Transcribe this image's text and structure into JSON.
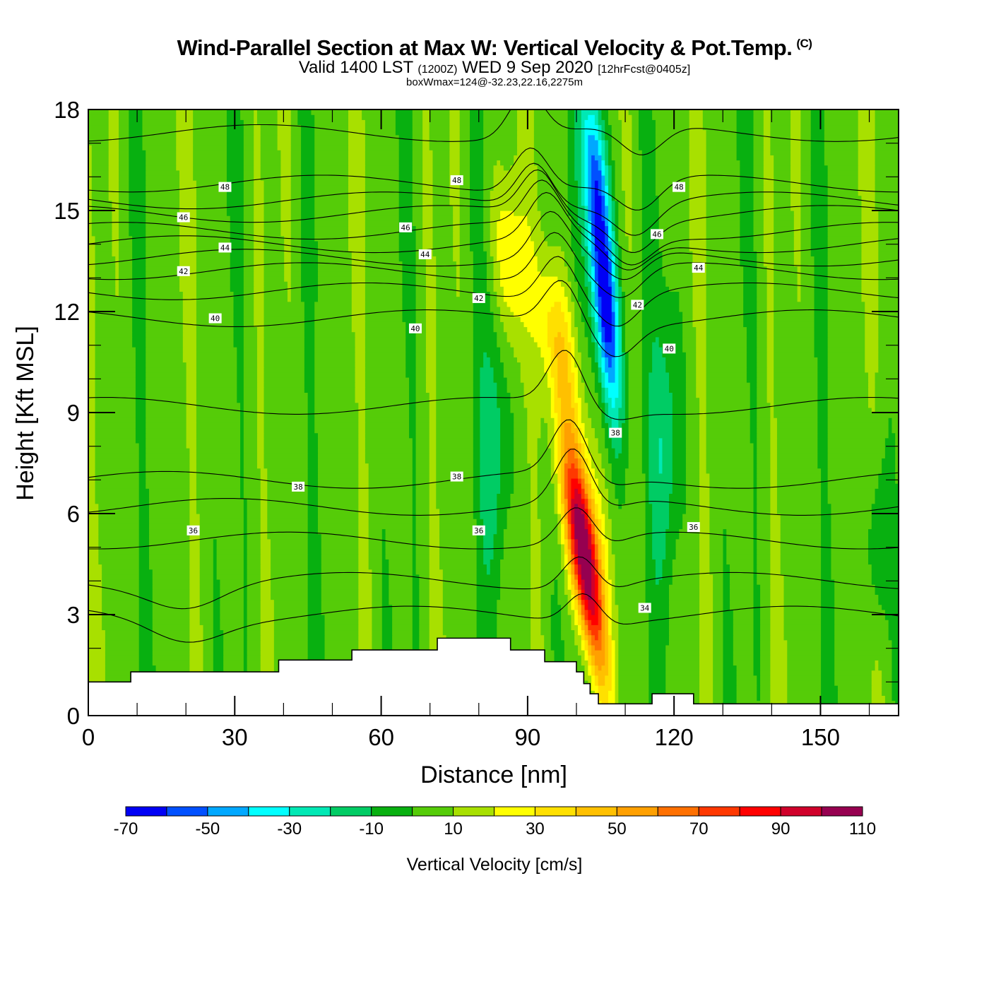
{
  "header": {
    "title": "Wind-Parallel Section at Max W: Vertical Velocity & Pot.Temp.",
    "copyright": "(C)",
    "valid_prefix": "Valid 1400 LST",
    "valid_utc": "(1200Z)",
    "valid_date": "WED 9 Sep 2020",
    "forecast": "[12hrFcst@0405z]",
    "box_info": "boxWmax=124@-32.23,22.16,2275m"
  },
  "chart_data": {
    "type": "heatmap",
    "title": "Wind-Parallel Section at Max W: Vertical Velocity & Pot.Temp.",
    "xlabel": "Distance [nm]",
    "ylabel": "Height [Kft MSL]",
    "xlim": [
      0,
      166
    ],
    "ylim": [
      0,
      18
    ],
    "xticks": [
      0,
      30,
      60,
      90,
      120,
      150
    ],
    "xminor_step": 10,
    "yticks": [
      0,
      3,
      6,
      9,
      12,
      15,
      18
    ],
    "yminor_step": 1,
    "colorbar": {
      "label": "Vertical Velocity [cm/s]",
      "levels": [
        -70,
        -60,
        -50,
        -40,
        -30,
        -20,
        -10,
        0,
        10,
        20,
        30,
        40,
        50,
        60,
        70,
        80,
        90,
        100,
        110
      ],
      "tick_labels": [
        "-70",
        "-50",
        "-30",
        "-10",
        "10",
        "30",
        "50",
        "70",
        "90",
        "110"
      ],
      "colors": [
        "#0000f5",
        "#0050ff",
        "#00a8ff",
        "#00ffff",
        "#00e8b4",
        "#00cc64",
        "#08b010",
        "#55cc08",
        "#a8e000",
        "#ffff00",
        "#ffe000",
        "#ffc000",
        "#ffa000",
        "#ff7000",
        "#ff3800",
        "#ff0000",
        "#d0002a",
        "#960050"
      ]
    },
    "background_level_cm_s": 5,
    "w_features": [
      {
        "name": "main-updraft",
        "max_cm_s": 124,
        "x_center_nm": 102.5,
        "z_center_kft": 5,
        "note": "tilted updraft core, >100 cm/s"
      },
      {
        "name": "main-downdraft",
        "min_cm_s": -70,
        "x_center_nm": 106.5,
        "z_center_kft": 12.5,
        "note": "tilted downdraft band above/right of updraft"
      },
      {
        "name": "upper-updraft",
        "max_cm_s": 30,
        "x_center_nm": 86,
        "z_center_kft": 13.5
      }
    ],
    "theta_contours": {
      "variable": "Potential Temperature",
      "units": "C",
      "interval": 1,
      "levels": [
        34,
        35,
        36,
        37,
        38,
        39,
        40,
        41,
        42,
        43,
        44,
        45,
        46,
        47,
        48,
        49
      ],
      "labels": [
        {
          "value": "48",
          "x_nm": 28,
          "z_kft": 15.7
        },
        {
          "value": "46",
          "x_nm": 19.5,
          "z_kft": 14.8
        },
        {
          "value": "44",
          "x_nm": 28,
          "z_kft": 13.9
        },
        {
          "value": "42",
          "x_nm": 19.5,
          "z_kft": 13.2
        },
        {
          "value": "40",
          "x_nm": 26,
          "z_kft": 11.8
        },
        {
          "value": "38",
          "x_nm": 43,
          "z_kft": 6.8
        },
        {
          "value": "36",
          "x_nm": 21.5,
          "z_kft": 5.5
        },
        {
          "value": "48",
          "x_nm": 75.5,
          "z_kft": 15.9
        },
        {
          "value": "46",
          "x_nm": 65,
          "z_kft": 14.5
        },
        {
          "value": "44",
          "x_nm": 69,
          "z_kft": 13.7
        },
        {
          "value": "42",
          "x_nm": 80,
          "z_kft": 12.4
        },
        {
          "value": "40",
          "x_nm": 67,
          "z_kft": 11.5
        },
        {
          "value": "38",
          "x_nm": 75.5,
          "z_kft": 7.1
        },
        {
          "value": "36",
          "x_nm": 80,
          "z_kft": 5.5
        },
        {
          "value": "38",
          "x_nm": 108,
          "z_kft": 8.4
        },
        {
          "value": "48",
          "x_nm": 121,
          "z_kft": 15.7
        },
        {
          "value": "46",
          "x_nm": 116.5,
          "z_kft": 14.3
        },
        {
          "value": "44",
          "x_nm": 125,
          "z_kft": 13.3
        },
        {
          "value": "42",
          "x_nm": 112.5,
          "z_kft": 12.2
        },
        {
          "value": "40",
          "x_nm": 119,
          "z_kft": 10.9
        },
        {
          "value": "36",
          "x_nm": 124,
          "z_kft": 5.6
        },
        {
          "value": "34",
          "x_nm": 114,
          "z_kft": 3.2
        }
      ]
    },
    "terrain_kft": [
      {
        "x0": 0,
        "x1": 8.7,
        "z": 1.0
      },
      {
        "x0": 8.7,
        "x1": 39,
        "z": 1.3
      },
      {
        "x0": 39,
        "x1": 54,
        "z": 1.65
      },
      {
        "x0": 54,
        "x1": 71.5,
        "z": 1.95
      },
      {
        "x0": 71.5,
        "x1": 86.5,
        "z": 2.3
      },
      {
        "x0": 86.5,
        "x1": 93.5,
        "z": 1.95
      },
      {
        "x0": 93.5,
        "x1": 100,
        "z": 1.6
      },
      {
        "x0": 100,
        "x1": 101.5,
        "z": 1.3
      },
      {
        "x0": 101.5,
        "x1": 102.8,
        "z": 0.95
      },
      {
        "x0": 102.8,
        "x1": 104.5,
        "z": 0.65
      },
      {
        "x0": 104.5,
        "x1": 115.5,
        "z": 0.35
      },
      {
        "x0": 115.5,
        "x1": 124,
        "z": 0.65
      },
      {
        "x0": 124,
        "x1": 166,
        "z": 0.35
      }
    ]
  }
}
